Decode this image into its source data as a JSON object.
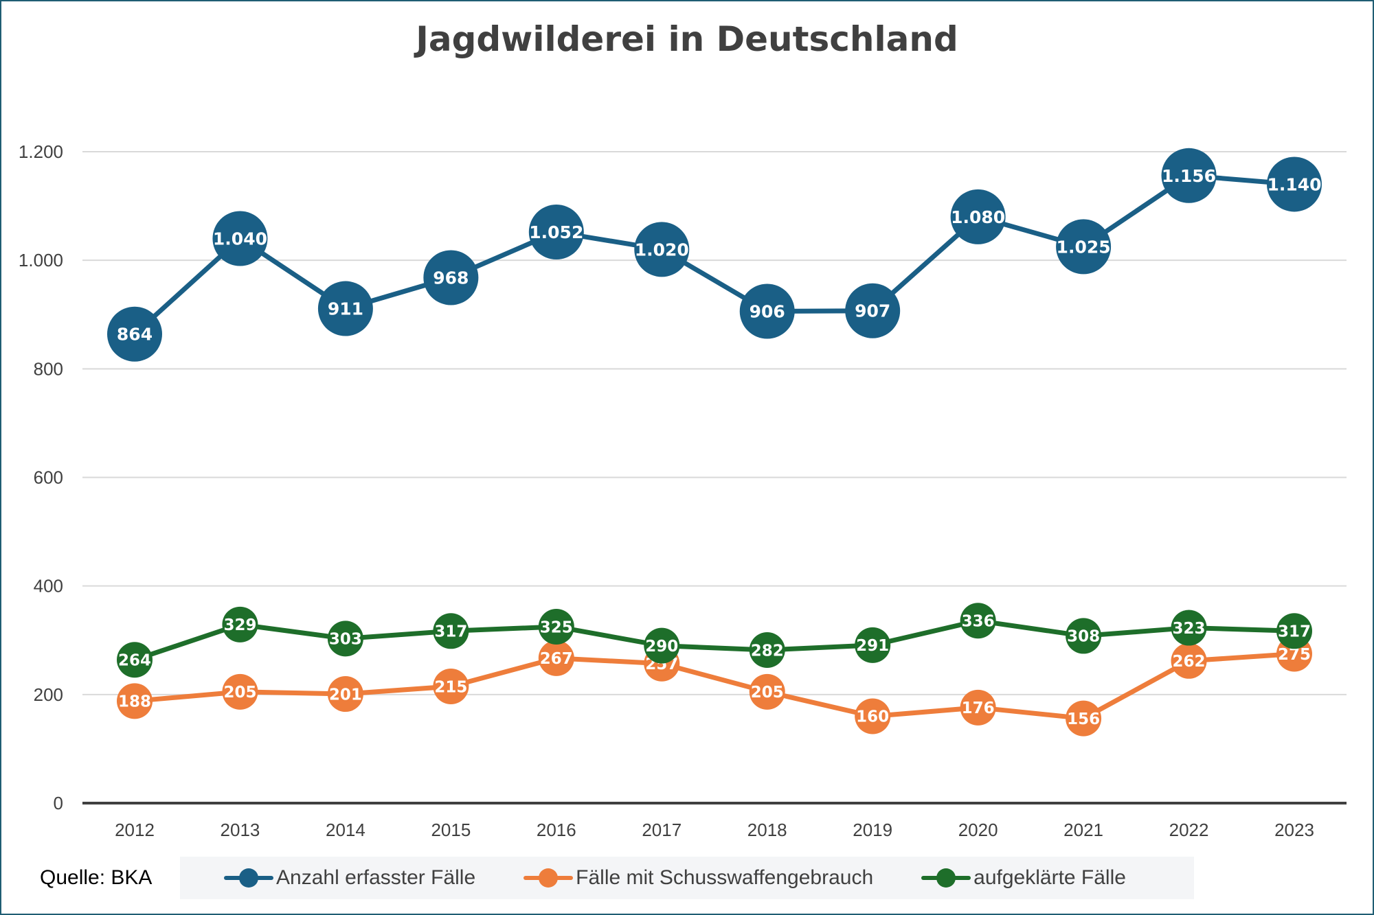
{
  "chart_data": {
    "type": "line",
    "title": "Jagdwilderei in Deutschland",
    "xlabel": "",
    "ylabel": "",
    "categories": [
      "2012",
      "2013",
      "2014",
      "2015",
      "2016",
      "2017",
      "2018",
      "2019",
      "2020",
      "2021",
      "2022",
      "2023"
    ],
    "ylim": [
      0,
      1200
    ],
    "yticks": [
      0,
      200,
      400,
      600,
      800,
      1000,
      1200
    ],
    "ytick_labels": [
      "0",
      "200",
      "400",
      "600",
      "800",
      "1.000",
      "1.200"
    ],
    "grid": true,
    "legend_position": "bottom",
    "series": [
      {
        "name": "Anzahl erfasster Fälle",
        "color": "#1a5f86",
        "values": [
          864,
          1040,
          911,
          968,
          1052,
          1020,
          906,
          907,
          1080,
          1025,
          1156,
          1140
        ],
        "labels": [
          "864",
          "1.040",
          "911",
          "968",
          "1.052",
          "1.020",
          "906",
          "907",
          "1.080",
          "1.025",
          "1.156",
          "1.140"
        ]
      },
      {
        "name": "Fälle mit Schusswaffengebrauch",
        "color": "#ee7d3b",
        "values": [
          188,
          205,
          201,
          215,
          267,
          257,
          205,
          160,
          176,
          156,
          262,
          275
        ],
        "labels": [
          "188",
          "205",
          "201",
          "215",
          "267",
          "257",
          "205",
          "160",
          "176",
          "156",
          "262",
          "275"
        ]
      },
      {
        "name": "aufgeklärte Fälle",
        "color": "#1e6e2a",
        "values": [
          264,
          329,
          303,
          317,
          325,
          290,
          282,
          291,
          336,
          308,
          323,
          317
        ],
        "labels": [
          "264",
          "329",
          "303",
          "317",
          "325",
          "290",
          "282",
          "291",
          "336",
          "308",
          "323",
          "317"
        ]
      }
    ]
  },
  "source_text": "Quelle: BKA"
}
